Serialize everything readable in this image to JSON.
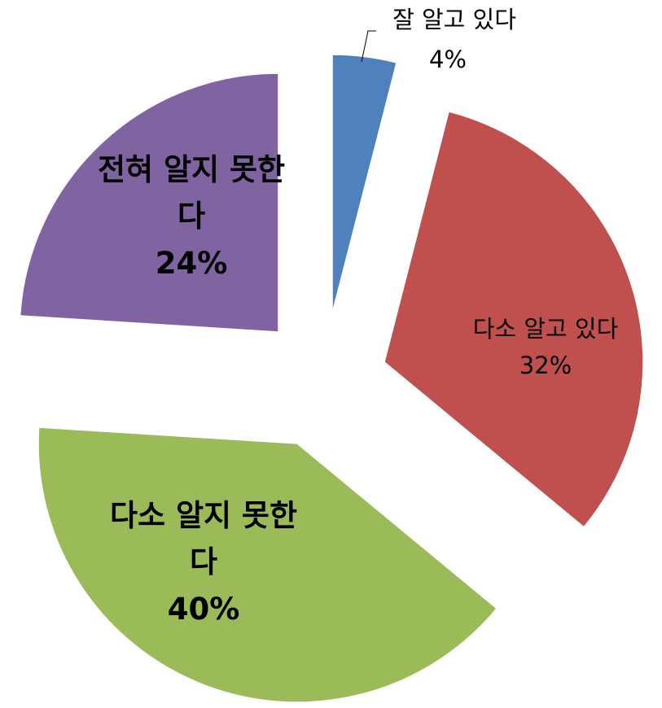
{
  "chart_data": {
    "type": "pie",
    "categories": [
      "잘 알고 있다",
      "다소 알고 있다",
      "다소 알지 못한다",
      "전혀 알지 못한다"
    ],
    "values": [
      4,
      32,
      40,
      24
    ],
    "value_labels": [
      "4%",
      "32%",
      "40%",
      "24%"
    ],
    "colors": [
      "#4f81bd",
      "#c0504d",
      "#9bbb59",
      "#8064a2"
    ]
  }
}
